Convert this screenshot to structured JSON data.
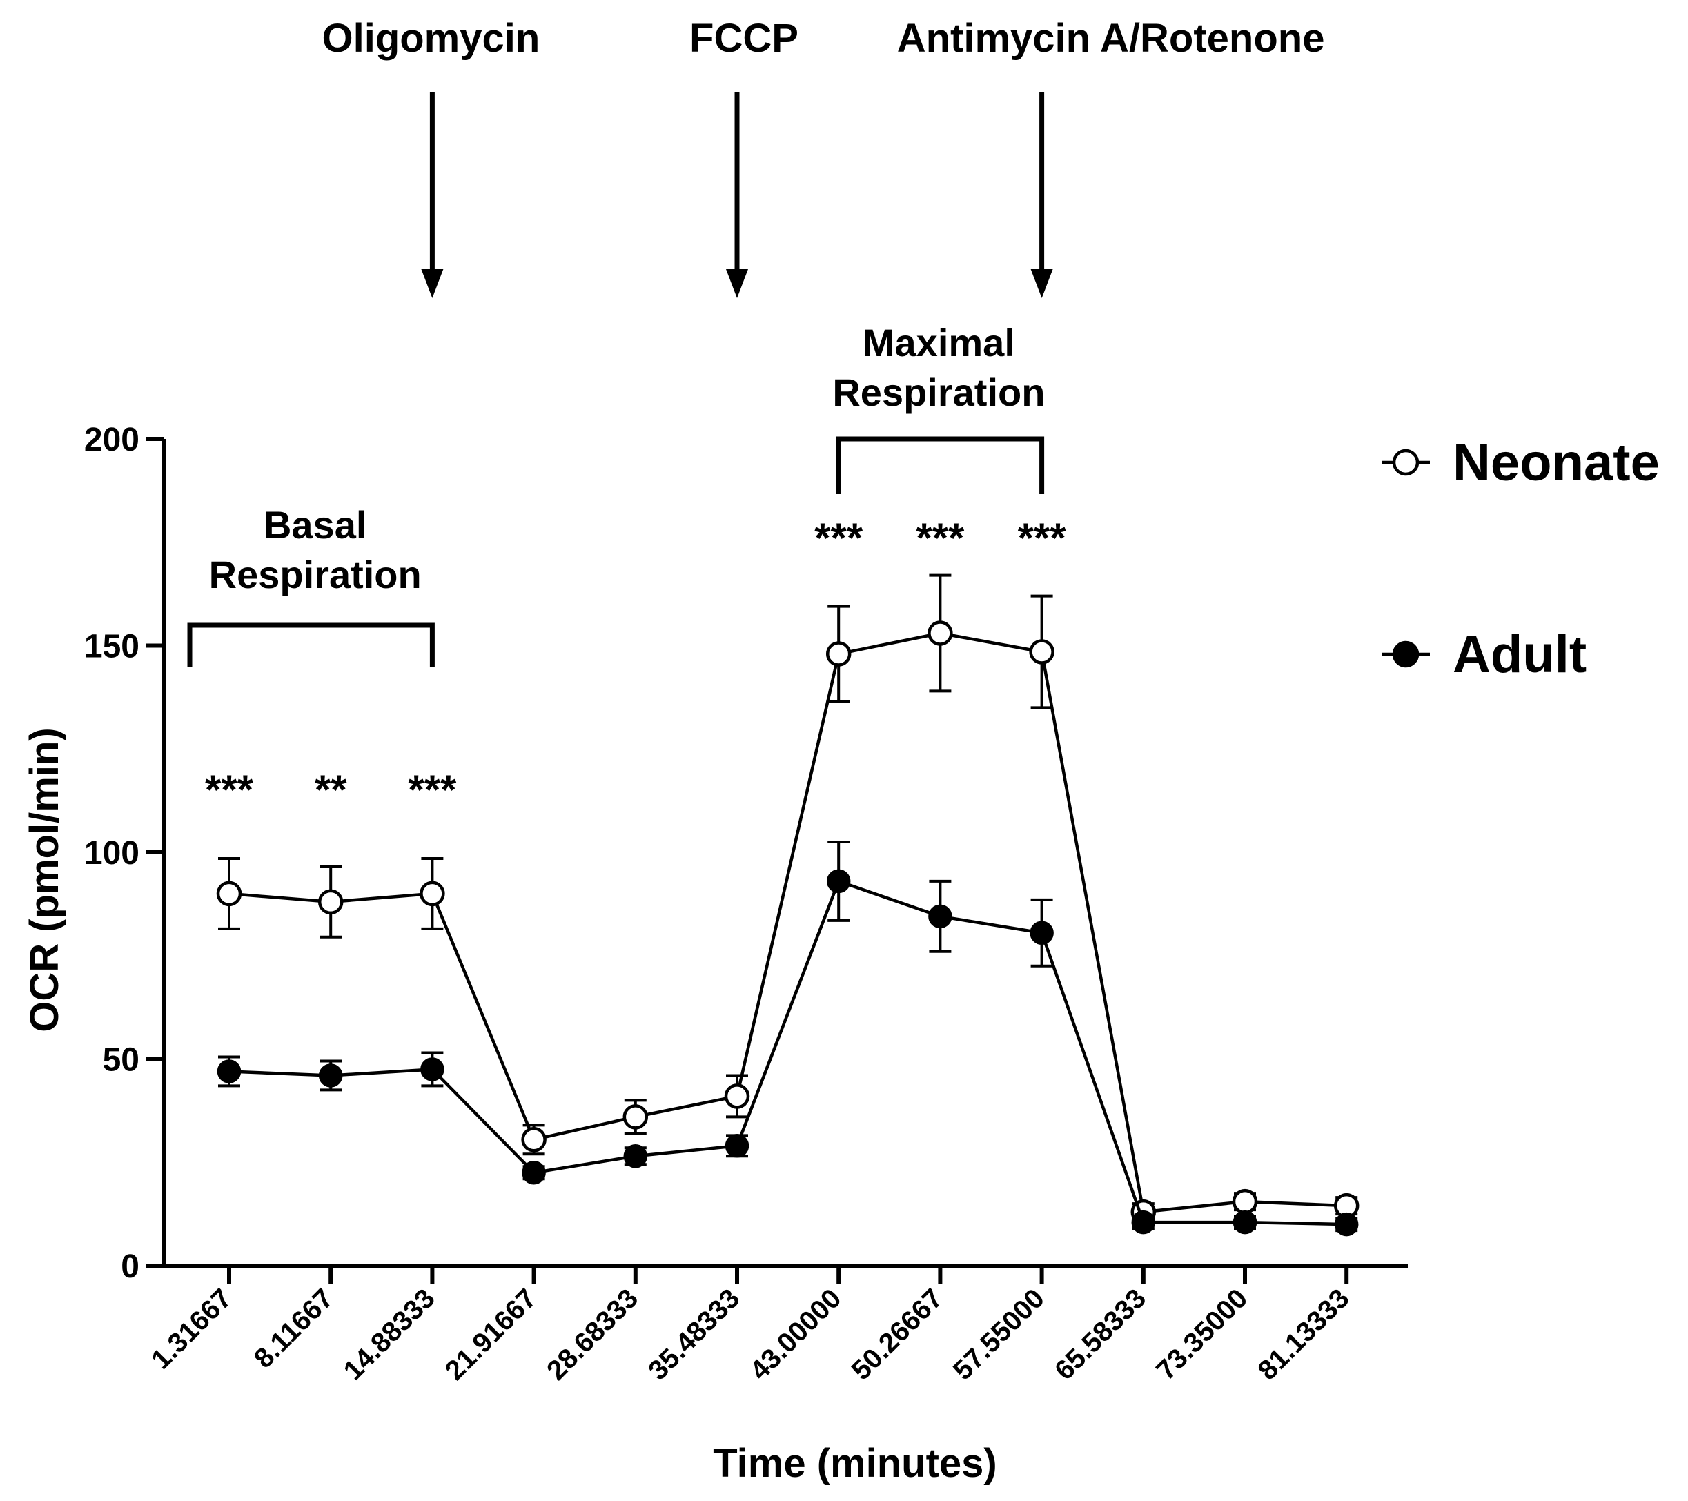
{
  "chart_data": {
    "type": "line",
    "xlabel": "Time (minutes)",
    "ylabel": "OCR (pmol/min)",
    "ylim": [
      0,
      200
    ],
    "yticks": [
      "0",
      "50",
      "100",
      "150",
      "200"
    ],
    "categories": [
      "1.31667",
      "8.11667",
      "14.88333",
      "21.91667",
      "28.68333",
      "35.48333",
      "43.00000",
      "50.26667",
      "57.55000",
      "65.58333",
      "73.35000",
      "81.13333"
    ],
    "series": [
      {
        "name": "Neonate",
        "marker": "open-circle",
        "values": [
          90,
          88,
          90,
          30.5,
          36,
          41,
          148,
          153,
          148.5,
          13,
          15.5,
          14.5
        ],
        "errors": [
          8.5,
          8.5,
          8.5,
          3.5,
          4,
          5,
          11.5,
          14,
          13.5,
          2,
          2,
          2
        ]
      },
      {
        "name": "Adult",
        "marker": "filled-circle",
        "values": [
          47,
          46,
          47.5,
          22.5,
          26.5,
          29,
          93,
          84.5,
          80.5,
          10.5,
          10.5,
          10
        ],
        "errors": [
          3.5,
          3.5,
          4,
          1.5,
          2,
          2.5,
          9.5,
          8.5,
          8,
          1.5,
          1.5,
          1.5
        ]
      }
    ],
    "injections": [
      {
        "label": "Oligomycin",
        "after_index": 2
      },
      {
        "label": "FCCP",
        "after_index": 5
      },
      {
        "label": "Antimycin A/Rotenone",
        "after_index": 8
      }
    ],
    "brackets": [
      {
        "label_lines": [
          "Basal",
          "Respiration"
        ],
        "from_index": 0,
        "to_index": 2
      },
      {
        "label_lines": [
          "Maximal",
          "Respiration"
        ],
        "from_index": 6,
        "to_index": 8
      }
    ],
    "significance": [
      {
        "index": 0,
        "text": "***"
      },
      {
        "index": 1,
        "text": "**"
      },
      {
        "index": 2,
        "text": "***"
      },
      {
        "index": 6,
        "text": "***"
      },
      {
        "index": 7,
        "text": "***"
      },
      {
        "index": 8,
        "text": "***"
      }
    ],
    "legend_position": "right",
    "grid": false
  }
}
